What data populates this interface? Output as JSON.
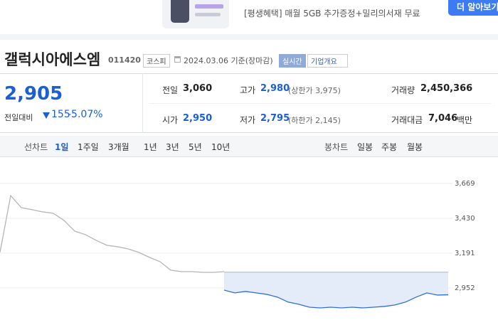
{
  "banner": {
    "text": "[평생혜택] 매월 5GB 추가증정+밀리의서재 무료",
    "button": "더 알아보기"
  },
  "header": {
    "name": "갤럭시아에스엠",
    "code": "011420",
    "market": "코스피",
    "date": "2024.03.06 기준(장마감)",
    "realtime": "실시간",
    "company": "기업개요"
  },
  "quote": {
    "price": "2,905",
    "change_label": "전일대비",
    "change": "155",
    "change_pct": "-5.07%"
  },
  "stats": {
    "prev_label": "전일",
    "prev": "3,060",
    "high_label": "고가",
    "high": "2,980",
    "upper_limit": "(상한가 3,975)",
    "volume_label": "거래량",
    "volume": "2,450,366",
    "open_label": "시가",
    "open": "2,950",
    "low_label": "저가",
    "low": "2,795",
    "lower_limit": "(하한가 2,145)",
    "amount_label": "거래대금",
    "amount": "7,046",
    "amount_unit": "백만"
  },
  "tabs": {
    "line_label": "선차트",
    "line_periods": [
      "1일",
      "1주일",
      "3개월",
      "1년",
      "3년",
      "5년",
      "10년"
    ],
    "candle_label": "봉차트",
    "candle_periods": [
      "일봉",
      "주봉",
      "월봉"
    ]
  },
  "chart_data": {
    "type": "line",
    "categories": [
      null,
      null,
      null,
      null,
      null,
      null,
      null,
      null,
      null,
      null,
      null,
      null,
      null,
      null,
      null,
      null,
      null,
      null,
      null,
      null,
      null,
      null,
      null,
      null,
      null,
      null,
      null,
      null,
      null,
      null,
      null,
      null,
      null,
      null,
      null,
      null,
      null,
      null,
      null,
      null,
      null,
      null,
      null
    ],
    "series": [
      {
        "color": "#b5b5b5",
        "values": [
          3196,
          3586,
          3503,
          3489,
          3474,
          3464,
          3415,
          3342,
          3318,
          3279,
          3245,
          3235,
          3220,
          3196,
          3162,
          3132,
          3074,
          3064,
          3064,
          3059,
          3059,
          3064,
          null,
          null,
          null,
          null,
          null,
          null,
          null,
          null,
          null,
          null,
          null,
          null,
          null,
          null,
          null,
          null,
          null,
          null,
          null,
          null,
          null
        ]
      },
      {
        "color": "#2f6fd6",
        "values": [
          null,
          null,
          null,
          null,
          null,
          null,
          null,
          null,
          null,
          null,
          null,
          null,
          null,
          null,
          null,
          null,
          null,
          null,
          null,
          null,
          null,
          2937,
          2918,
          2928,
          2918,
          2908,
          2889,
          2855,
          2840,
          2820,
          2815,
          2820,
          2815,
          2820,
          2815,
          2820,
          2825,
          2835,
          2855,
          2889,
          2918,
          2903,
          2905
        ]
      }
    ],
    "reference_line": 3060,
    "ylim": [
      2732,
      3830
    ],
    "yticks": [
      {
        "value": 2952,
        "label": "2,952"
      },
      {
        "value": 3191,
        "label": "3,191"
      },
      {
        "value": 3430,
        "label": "3,430"
      },
      {
        "value": 3669,
        "label": "3,669"
      }
    ],
    "grid": true
  }
}
